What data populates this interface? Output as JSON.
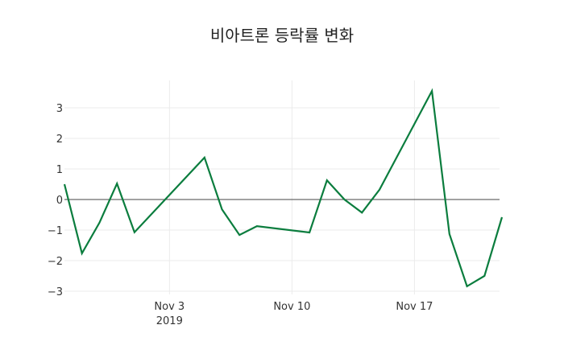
{
  "chart_data": {
    "type": "line",
    "title": "비아트론 등락률 변화",
    "xlabel": "",
    "ylabel": "",
    "x": [
      "2019-10-28",
      "2019-10-29",
      "2019-10-30",
      "2019-10-31",
      "2019-11-01",
      "2019-11-05",
      "2019-11-06",
      "2019-11-07",
      "2019-11-08",
      "2019-11-11",
      "2019-11-12",
      "2019-11-13",
      "2019-11-14",
      "2019-11-15",
      "2019-11-18",
      "2019-11-19",
      "2019-11-20",
      "2019-11-21",
      "2019-11-22"
    ],
    "series": [
      {
        "name": "등락률",
        "color": "#0b7d3e",
        "values": [
          0.5,
          -1.76,
          -0.76,
          0.52,
          -1.07,
          1.37,
          -0.32,
          -1.16,
          -0.87,
          -1.08,
          0.63,
          0.0,
          -0.43,
          0.32,
          3.55,
          -1.13,
          -2.84,
          -2.5,
          -0.58
        ]
      }
    ],
    "x_ticks": [
      {
        "label": "Nov 3",
        "sublabel": "2019",
        "date": "2019-11-03"
      },
      {
        "label": "Nov 10",
        "sublabel": "",
        "date": "2019-11-10"
      },
      {
        "label": "Nov 17",
        "sublabel": "",
        "date": "2019-11-17"
      }
    ],
    "y_ticks": [
      3,
      2,
      1,
      0,
      -1,
      -2,
      -3
    ],
    "y_tick_labels": [
      "3",
      "2",
      "1",
      "0",
      "−1",
      "−2",
      "−3"
    ],
    "ylim": [
      -3.3,
      3.9
    ],
    "grid": true,
    "zero_line": true,
    "legend": "none"
  }
}
